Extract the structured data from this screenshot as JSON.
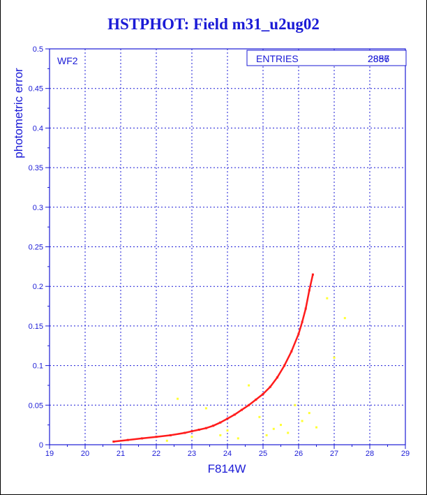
{
  "title": "HSTPHOT: Field m31_u2ug02",
  "colors": {
    "title": "#1a1ad6",
    "axis": "#1a1ad6",
    "grid": "#1a1ad6",
    "primary": "#ff1c1c",
    "secondary": "#ffff33"
  },
  "chart_data": {
    "type": "scatter",
    "title": "HSTPHOT: Field m31_u2ug02",
    "xlabel": "F814W",
    "ylabel": "photometric error",
    "xlim": [
      19,
      29
    ],
    "ylim": [
      0,
      0.5
    ],
    "xticks": [
      "19",
      "20",
      "21",
      "22",
      "23",
      "24",
      "25",
      "26",
      "27",
      "28",
      "29"
    ],
    "yticks": [
      "0",
      "0.05",
      "0.1",
      "0.15",
      "0.2",
      "0.25",
      "0.3",
      "0.35",
      "0.4",
      "0.45",
      "0.5"
    ],
    "grid": true,
    "panel_label": "WF2",
    "stats_box": {
      "label": "ENTRIES",
      "values": [
        "2887",
        "2856"
      ]
    },
    "series": [
      {
        "color": "#ff1c1c",
        "x": [
          20.8,
          21.2,
          21.6,
          22.0,
          22.4,
          22.8,
          23.0,
          23.2,
          23.4,
          23.6,
          23.8,
          24.0,
          24.2,
          24.4,
          24.6,
          24.8,
          25.0,
          25.2,
          25.4,
          25.6,
          25.8,
          26.0,
          26.1,
          26.2,
          26.3,
          26.4
        ],
        "y": [
          0.004,
          0.006,
          0.008,
          0.01,
          0.012,
          0.015,
          0.017,
          0.019,
          0.021,
          0.024,
          0.028,
          0.033,
          0.038,
          0.044,
          0.05,
          0.057,
          0.064,
          0.073,
          0.085,
          0.1,
          0.118,
          0.14,
          0.155,
          0.172,
          0.195,
          0.215
        ]
      },
      {
        "color": "#ffff33",
        "x": [
          22.3,
          22.6,
          23.0,
          23.4,
          23.8,
          24.0,
          24.3,
          24.6,
          24.9,
          25.1,
          25.3,
          25.5,
          25.7,
          25.9,
          26.1,
          26.3,
          26.5,
          26.8,
          27.0,
          27.3
        ],
        "y": [
          0.005,
          0.058,
          0.01,
          0.046,
          0.012,
          0.018,
          0.008,
          0.075,
          0.035,
          0.012,
          0.02,
          0.025,
          0.015,
          0.05,
          0.03,
          0.04,
          0.022,
          0.185,
          0.11,
          0.16
        ]
      }
    ]
  }
}
